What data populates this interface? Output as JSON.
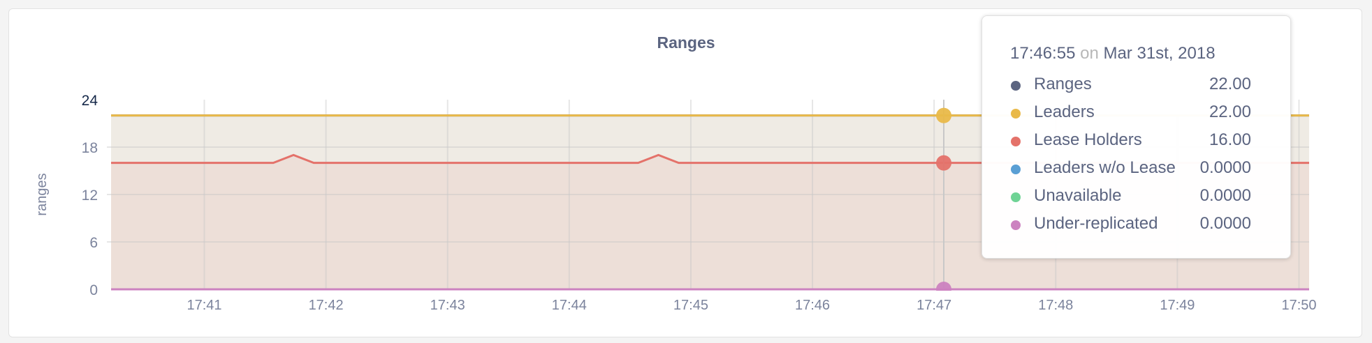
{
  "chart_data": {
    "type": "area",
    "title": "Ranges",
    "ylabel": "ranges",
    "xlabel": "",
    "ylim": [
      0,
      24
    ],
    "yticks": [
      "0",
      "6",
      "12",
      "18",
      "24"
    ],
    "xlim": [
      "17:40:14",
      "17:50:05"
    ],
    "xticks": [
      "17:41",
      "17:42",
      "17:43",
      "17:44",
      "17:45",
      "17:46",
      "17:47",
      "17:48",
      "17:49",
      "17:50"
    ],
    "grid": true,
    "series": [
      {
        "name": "Ranges",
        "color": "#5b6480",
        "points": [
          [
            "17:40:14",
            22
          ],
          [
            "17:50:05",
            22
          ]
        ]
      },
      {
        "name": "Leaders",
        "color": "#e9b949",
        "fill": "#efebe4",
        "points": [
          [
            "17:40:14",
            22
          ],
          [
            "17:50:05",
            22
          ]
        ]
      },
      {
        "name": "Lease Holders",
        "color": "#e4726a",
        "fill": "#eddfd8",
        "points": [
          [
            "17:40:14",
            16
          ],
          [
            "17:41:34",
            16
          ],
          [
            "17:41:44",
            17
          ],
          [
            "17:41:54",
            16
          ],
          [
            "17:44:34",
            16
          ],
          [
            "17:44:44",
            17
          ],
          [
            "17:44:54",
            16
          ],
          [
            "17:50:05",
            16
          ]
        ]
      },
      {
        "name": "Leaders w/o Lease",
        "color": "#5a9fd4",
        "points": [
          [
            "17:40:14",
            0
          ],
          [
            "17:50:05",
            0
          ]
        ]
      },
      {
        "name": "Unavailable",
        "color": "#6fd395",
        "points": [
          [
            "17:40:14",
            0
          ],
          [
            "17:50:05",
            0
          ]
        ]
      },
      {
        "name": "Under-replicated",
        "color": "#cc82c0",
        "points": [
          [
            "17:40:14",
            0
          ],
          [
            "17:50:05",
            0
          ]
        ]
      }
    ]
  },
  "tooltip": {
    "time": "17:46:55",
    "on": "on",
    "date": "Mar 31st, 2018",
    "rows": [
      {
        "label": "Ranges",
        "value": "22.00",
        "color": "#5b6480"
      },
      {
        "label": "Leaders",
        "value": "22.00",
        "color": "#e9b949"
      },
      {
        "label": "Lease Holders",
        "value": "16.00",
        "color": "#e4726a"
      },
      {
        "label": "Leaders w/o Lease",
        "value": "0.0000",
        "color": "#5a9fd4"
      },
      {
        "label": "Unavailable",
        "value": "0.0000",
        "color": "#6fd395"
      },
      {
        "label": "Under-replicated",
        "value": "0.0000",
        "color": "#cc82c0"
      }
    ]
  }
}
